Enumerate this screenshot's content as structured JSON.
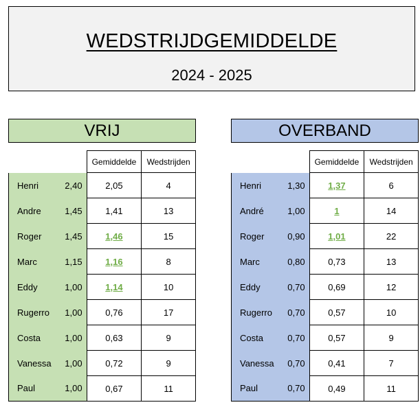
{
  "title": "WEDSTRIJDGEMIDDELDE",
  "season": "2024 - 2025",
  "columns": {
    "avg": "Gemiddelde",
    "matches": "Wedstrijden"
  },
  "colors": {
    "vrij": "#c6e0b4",
    "overband": "#b4c6e7",
    "highlight": "#70ad47"
  },
  "vrij": {
    "label": "VRIJ",
    "rows": [
      {
        "name": "Henri",
        "target": "2,40",
        "avg": "2,05",
        "matches": "4",
        "highlight": false
      },
      {
        "name": "Andre",
        "target": "1,45",
        "avg": "1,41",
        "matches": "13",
        "highlight": false
      },
      {
        "name": "Roger",
        "target": "1,45",
        "avg": "1,46",
        "matches": "15",
        "highlight": true
      },
      {
        "name": "Marc",
        "target": "1,15",
        "avg": "1,16",
        "matches": "8",
        "highlight": true
      },
      {
        "name": "Eddy",
        "target": "1,00",
        "avg": "1,14",
        "matches": "10",
        "highlight": true
      },
      {
        "name": "Rugerro",
        "target": "1,00",
        "avg": "0,76",
        "matches": "17",
        "highlight": false
      },
      {
        "name": "Costa",
        "target": "1,00",
        "avg": "0,63",
        "matches": "9",
        "highlight": false
      },
      {
        "name": "Vanessa",
        "target": "1,00",
        "avg": "0,72",
        "matches": "9",
        "highlight": false
      },
      {
        "name": "Paul",
        "target": "1,00",
        "avg": "0,67",
        "matches": "11",
        "highlight": false
      }
    ]
  },
  "overband": {
    "label": "OVERBAND",
    "rows": [
      {
        "name": "Henri",
        "target": "1,30",
        "avg": "1,37",
        "matches": "6",
        "highlight": true
      },
      {
        "name": "André",
        "target": "1,00",
        "avg": "1",
        "matches": "14",
        "highlight": true
      },
      {
        "name": "Roger",
        "target": "0,90",
        "avg": "1,01",
        "matches": "22",
        "highlight": true
      },
      {
        "name": "Marc",
        "target": "0,80",
        "avg": "0,73",
        "matches": "13",
        "highlight": false
      },
      {
        "name": "Eddy",
        "target": "0,70",
        "avg": "0,69",
        "matches": "12",
        "highlight": false
      },
      {
        "name": "Rugerro",
        "target": "0,70",
        "avg": "0,57",
        "matches": "10",
        "highlight": false
      },
      {
        "name": "Costa",
        "target": "0,70",
        "avg": "0,57",
        "matches": "9",
        "highlight": false
      },
      {
        "name": "Vanessa",
        "target": "0,70",
        "avg": "0,41",
        "matches": "7",
        "highlight": false
      },
      {
        "name": "Paul",
        "target": "0,70",
        "avg": "0,49",
        "matches": "11",
        "highlight": false
      }
    ]
  }
}
